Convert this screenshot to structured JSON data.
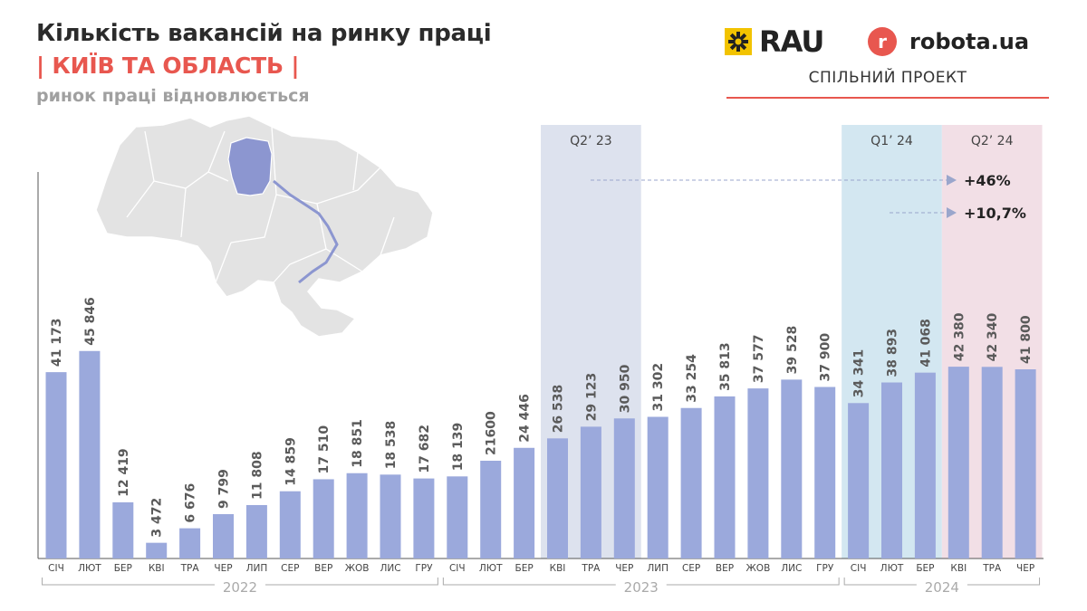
{
  "header": {
    "title": "Кількість вакансій на ринку праці",
    "subtitle": "| КИЇВ ТА ОБЛАСТЬ |",
    "note": "ринок праці відновлюється"
  },
  "logos": {
    "rau": "RAU",
    "robota_mark": "r",
    "robota": "robota.ua",
    "joint_project": "СПІЛЬНИЙ ПРОЕКТ"
  },
  "colors": {
    "bar": "#9ba9dc",
    "label": "#5a5a5a",
    "accent": "#e8574f",
    "q2_23_band": "#dde2ee",
    "q1_24_band": "#d3e7f1",
    "q2_24_band": "#f2dfe6",
    "map_fill": "#e3e3e3",
    "map_highlight": "#8c96d0"
  },
  "chart_data": {
    "type": "bar",
    "title": "Кількість вакансій на ринку праці",
    "categories": [
      "СІЧ",
      "ЛЮТ",
      "БЕР",
      "КВІ",
      "ТРА",
      "ЧЕР",
      "ЛИП",
      "СЕР",
      "ВЕР",
      "ЖОВ",
      "ЛИС",
      "ГРУ",
      "СІЧ",
      "ЛЮТ",
      "БЕР",
      "КВІ",
      "ТРА",
      "ЧЕР",
      "ЛИП",
      "СЕР",
      "ВЕР",
      "ЖОВ",
      "ЛИС",
      "ГРУ",
      "СІЧ",
      "ЛЮТ",
      "БЕР",
      "КВІ",
      "ТРА",
      "ЧЕР"
    ],
    "values": [
      41173,
      45846,
      12419,
      3472,
      6676,
      9799,
      11808,
      14859,
      17510,
      18851,
      18538,
      17682,
      18139,
      21600,
      24446,
      26538,
      29123,
      30950,
      31302,
      33254,
      35813,
      37577,
      39528,
      37900,
      34341,
      38893,
      41068,
      42380,
      42340,
      41800
    ],
    "value_labels": [
      "41 173",
      "45 846",
      "12 419",
      "3 472",
      "6 676",
      "9 799",
      "11 808",
      "14 859",
      "17 510",
      "18 851",
      "18 538",
      "17 682",
      "18 139",
      "21600",
      "24 446",
      "26 538",
      "29 123",
      "30 950",
      "31 302",
      "33 254",
      "35 813",
      "37 577",
      "39 528",
      "37 900",
      "34 341",
      "38 893",
      "41 068",
      "42 380",
      "42 340",
      "41 800"
    ],
    "years": [
      {
        "label": "2022",
        "from": 0,
        "to": 11
      },
      {
        "label": "2023",
        "from": 12,
        "to": 23
      },
      {
        "label": "2024",
        "from": 24,
        "to": 29
      }
    ],
    "highlights": [
      {
        "label": "Q2’ 23",
        "from": 15,
        "to": 17,
        "color_key": "q2_23_band"
      },
      {
        "label": "Q1’ 24",
        "from": 24,
        "to": 26,
        "color_key": "q1_24_band"
      },
      {
        "label": "Q2’ 24",
        "from": 27,
        "to": 29,
        "color_key": "q2_24_band"
      }
    ],
    "annotations": [
      {
        "text": "+46%",
        "from_band": 0
      },
      {
        "text": "+10,7%",
        "from_band": 1
      }
    ],
    "ylim": [
      0,
      90000
    ],
    "grid": false
  }
}
